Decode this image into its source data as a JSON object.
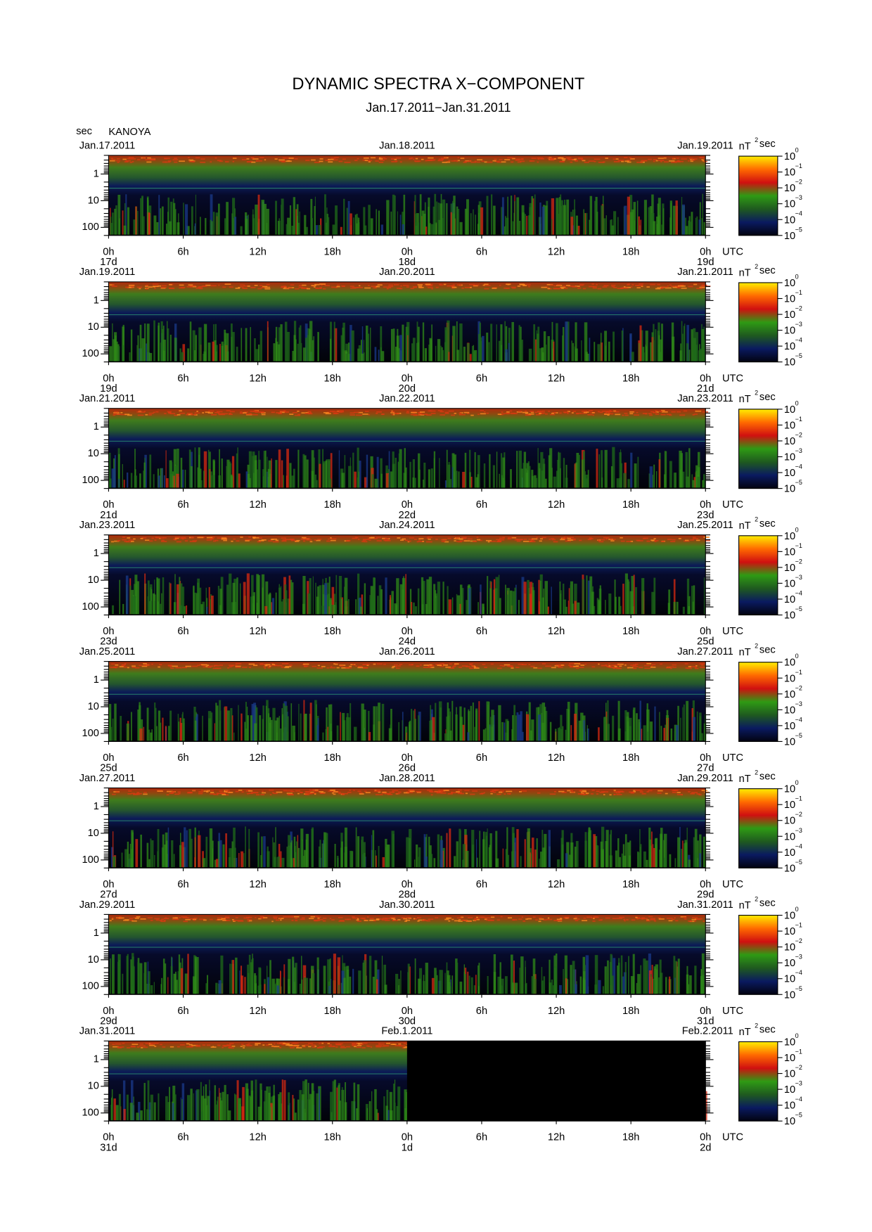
{
  "title": "DYNAMIC SPECTRA X−COMPONENT",
  "subtitle": "Jan.17.2011−Jan.31.2011",
  "y_unit": "sec",
  "station": "KANOYA",
  "x_unit": "UTC",
  "yscale": "log",
  "ylim": [
    0.2,
    200
  ],
  "yticks": [
    1,
    10,
    100
  ],
  "xlim": [
    0,
    48
  ],
  "xticks": [
    {
      "value": 0,
      "label": "0h"
    },
    {
      "value": 6,
      "label": "6h"
    },
    {
      "value": 12,
      "label": "12h"
    },
    {
      "value": 18,
      "label": "18h"
    },
    {
      "value": 24,
      "label": "0h"
    },
    {
      "value": 30,
      "label": "6h"
    },
    {
      "value": 36,
      "label": "12h"
    },
    {
      "value": 42,
      "label": "18h"
    },
    {
      "value": 48,
      "label": "0h"
    }
  ],
  "colorbar": {
    "unit": "nT",
    "unit_exponent": "2",
    "unit_suffix": "sec",
    "clim": [
      1e-05,
      1
    ],
    "colors": [
      "#020310",
      "#0a1a60",
      "#1f5a1f",
      "#2f9a14",
      "#d01010",
      "#ff6a00",
      "#ffee00"
    ],
    "ticks": [
      {
        "value": 1,
        "label": "10",
        "exponent": "0"
      },
      {
        "value": 0.1,
        "label": "10",
        "exponent": "−1"
      },
      {
        "value": 0.01,
        "label": "10",
        "exponent": "−2"
      },
      {
        "value": 0.001,
        "label": "10",
        "exponent": "−3"
      },
      {
        "value": 0.0001,
        "label": "10",
        "exponent": "−4"
      },
      {
        "value": 1e-05,
        "label": "10",
        "exponent": "−5"
      }
    ]
  },
  "panels": [
    {
      "dates": [
        "Jan.17.2011",
        "Jan.18.2011",
        "Jan.19.2011"
      ],
      "days": [
        "17d",
        "18d",
        "19d"
      ]
    },
    {
      "dates": [
        "Jan.19.2011",
        "Jan.20.2011",
        "Jan.21.2011"
      ],
      "days": [
        "19d",
        "20d",
        "21d"
      ]
    },
    {
      "dates": [
        "Jan.21.2011",
        "Jan.22.2011",
        "Jan.23.2011"
      ],
      "days": [
        "21d",
        "22d",
        "23d"
      ]
    },
    {
      "dates": [
        "Jan.23.2011",
        "Jan.24.2011",
        "Jan.25.2011"
      ],
      "days": [
        "23d",
        "24d",
        "25d"
      ]
    },
    {
      "dates": [
        "Jan.25.2011",
        "Jan.26.2011",
        "Jan.27.2011"
      ],
      "days": [
        "25d",
        "26d",
        "27d"
      ]
    },
    {
      "dates": [
        "Jan.27.2011",
        "Jan.28.2011",
        "Jan.29.2011"
      ],
      "days": [
        "27d",
        "28d",
        "29d"
      ]
    },
    {
      "dates": [
        "Jan.29.2011",
        "Jan.30.2011",
        "Jan.31.2011"
      ],
      "days": [
        "29d",
        "30d",
        "31d"
      ]
    },
    {
      "dates": [
        "Jan.31.2011",
        "Feb.1.2011",
        "Feb.2.2011"
      ],
      "days": [
        "31d",
        "1d",
        "2d"
      ]
    }
  ]
}
